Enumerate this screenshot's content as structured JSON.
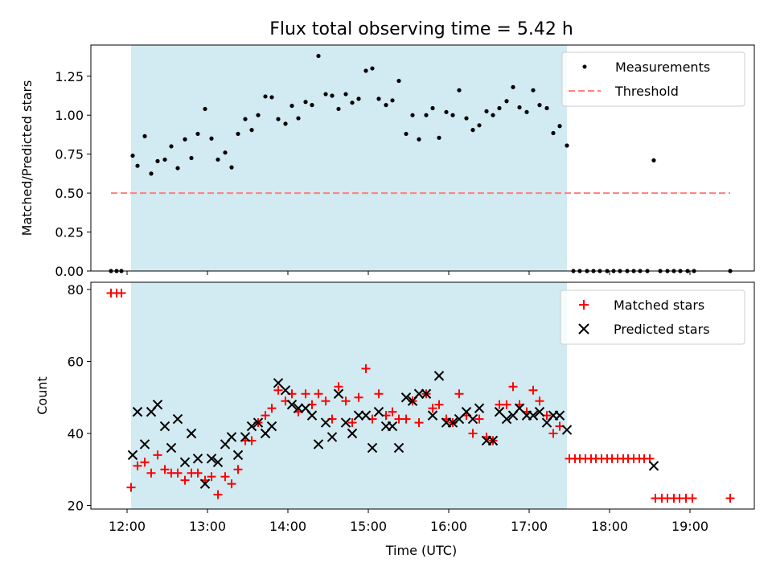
{
  "title": "Flux total observing time = 5.42 h",
  "colors": {
    "span": "#add8e6",
    "measurement": "#000000",
    "threshold": "#ff7f7f",
    "matched": "#ff0000",
    "predicted": "#000000"
  },
  "chart_data": [
    {
      "type": "scatter",
      "panel": "top",
      "ylabel": "Matched/Predicted stars",
      "xlabel": "",
      "xlim": [
        11.55,
        19.8
      ],
      "ylim": [
        0,
        1.45
      ],
      "yticks": [
        0.0,
        0.25,
        0.5,
        0.75,
        1.0,
        1.25
      ],
      "ytick_labels": [
        "0.00",
        "0.25",
        "0.50",
        "0.75",
        "1.00",
        "1.25"
      ],
      "xticks": [
        12,
        13,
        14,
        15,
        16,
        17,
        18,
        19
      ],
      "observing_span": [
        12.05,
        17.47
      ],
      "legend": {
        "placement": "top-right",
        "entries": [
          "Measurements",
          "Threshold"
        ]
      },
      "threshold": {
        "name": "Threshold",
        "y": 0.5,
        "x": [
          11.8,
          19.5
        ]
      },
      "series": [
        {
          "name": "Measurements",
          "points": [
            [
              11.8,
              0
            ],
            [
              11.87,
              0
            ],
            [
              11.93,
              0
            ],
            [
              12.07,
              0.74
            ],
            [
              12.13,
              0.675
            ],
            [
              12.22,
              0.865
            ],
            [
              12.3,
              0.625
            ],
            [
              12.38,
              0.705
            ],
            [
              12.47,
              0.715
            ],
            [
              12.55,
              0.8
            ],
            [
              12.63,
              0.66
            ],
            [
              12.72,
              0.845
            ],
            [
              12.8,
              0.725
            ],
            [
              12.88,
              0.88
            ],
            [
              12.97,
              1.04
            ],
            [
              13.05,
              0.85
            ],
            [
              13.13,
              0.715
            ],
            [
              13.22,
              0.76
            ],
            [
              13.3,
              0.665
            ],
            [
              13.38,
              0.88
            ],
            [
              13.47,
              0.975
            ],
            [
              13.55,
              0.905
            ],
            [
              13.63,
              1.0
            ],
            [
              13.72,
              1.12
            ],
            [
              13.8,
              1.115
            ],
            [
              13.88,
              0.975
            ],
            [
              13.97,
              0.945
            ],
            [
              14.05,
              1.06
            ],
            [
              14.13,
              0.98
            ],
            [
              14.22,
              1.085
            ],
            [
              14.3,
              1.065
            ],
            [
              14.38,
              1.38
            ],
            [
              14.47,
              1.135
            ],
            [
              14.55,
              1.125
            ],
            [
              14.63,
              1.04
            ],
            [
              14.72,
              1.135
            ],
            [
              14.8,
              1.08
            ],
            [
              14.88,
              1.105
            ],
            [
              14.97,
              1.285
            ],
            [
              15.05,
              1.3
            ],
            [
              15.13,
              1.105
            ],
            [
              15.22,
              1.065
            ],
            [
              15.3,
              1.095
            ],
            [
              15.38,
              1.22
            ],
            [
              15.47,
              0.88
            ],
            [
              15.55,
              1.0
            ],
            [
              15.63,
              0.845
            ],
            [
              15.72,
              1.0
            ],
            [
              15.8,
              1.045
            ],
            [
              15.88,
              0.855
            ],
            [
              15.97,
              1.02
            ],
            [
              16.05,
              1.0
            ],
            [
              16.13,
              1.16
            ],
            [
              16.22,
              0.98
            ],
            [
              16.3,
              0.905
            ],
            [
              16.38,
              0.935
            ],
            [
              16.47,
              1.025
            ],
            [
              16.55,
              1.0
            ],
            [
              16.63,
              1.045
            ],
            [
              16.72,
              1.09
            ],
            [
              16.8,
              1.18
            ],
            [
              16.88,
              1.05
            ],
            [
              16.97,
              1.02
            ],
            [
              17.05,
              1.16
            ],
            [
              17.13,
              1.065
            ],
            [
              17.22,
              1.045
            ],
            [
              17.3,
              0.885
            ],
            [
              17.38,
              0.93
            ],
            [
              17.47,
              0.805
            ],
            [
              17.55,
              0
            ],
            [
              17.63,
              0
            ],
            [
              17.72,
              0
            ],
            [
              17.8,
              0
            ],
            [
              17.88,
              0
            ],
            [
              17.97,
              0
            ],
            [
              18.05,
              0
            ],
            [
              18.13,
              0
            ],
            [
              18.22,
              0
            ],
            [
              18.3,
              0
            ],
            [
              18.38,
              0
            ],
            [
              18.47,
              0
            ],
            [
              18.55,
              0.71
            ],
            [
              18.63,
              0
            ],
            [
              18.72,
              0
            ],
            [
              18.8,
              0
            ],
            [
              18.88,
              0
            ],
            [
              18.97,
              0
            ],
            [
              19.05,
              0
            ],
            [
              19.5,
              0
            ]
          ]
        }
      ]
    },
    {
      "type": "scatter",
      "panel": "bottom",
      "ylabel": "Count",
      "xlabel": "Time (UTC)",
      "xlim": [
        11.55,
        19.8
      ],
      "ylim": [
        19,
        82
      ],
      "yticks": [
        20,
        40,
        60,
        80
      ],
      "ytick_labels": [
        "20",
        "40",
        "60",
        "80"
      ],
      "xticks": [
        12,
        13,
        14,
        15,
        16,
        17,
        18,
        19
      ],
      "xtick_labels": [
        "12:00",
        "13:00",
        "14:00",
        "15:00",
        "16:00",
        "17:00",
        "18:00",
        "19:00"
      ],
      "observing_span": [
        12.05,
        17.47
      ],
      "legend": {
        "placement": "top-right",
        "entries": [
          "Matched stars",
          "Predicted stars"
        ]
      },
      "series": [
        {
          "name": "Matched stars",
          "points": [
            [
              11.8,
              79
            ],
            [
              11.87,
              79
            ],
            [
              11.93,
              79
            ],
            [
              12.05,
              25
            ],
            [
              12.13,
              31
            ],
            [
              12.22,
              32
            ],
            [
              12.3,
              29
            ],
            [
              12.38,
              34
            ],
            [
              12.47,
              30
            ],
            [
              12.55,
              29
            ],
            [
              12.63,
              29
            ],
            [
              12.72,
              27
            ],
            [
              12.8,
              29
            ],
            [
              12.88,
              29
            ],
            [
              12.97,
              27
            ],
            [
              13.05,
              28
            ],
            [
              13.13,
              23
            ],
            [
              13.22,
              28
            ],
            [
              13.3,
              26
            ],
            [
              13.38,
              30
            ],
            [
              13.47,
              38
            ],
            [
              13.55,
              38
            ],
            [
              13.63,
              43
            ],
            [
              13.72,
              45
            ],
            [
              13.8,
              47
            ],
            [
              13.88,
              52
            ],
            [
              13.97,
              49
            ],
            [
              14.05,
              51
            ],
            [
              14.13,
              46
            ],
            [
              14.22,
              51
            ],
            [
              14.3,
              48
            ],
            [
              14.38,
              51
            ],
            [
              14.47,
              49
            ],
            [
              14.55,
              44
            ],
            [
              14.63,
              53
            ],
            [
              14.72,
              49
            ],
            [
              14.8,
              43
            ],
            [
              14.88,
              50
            ],
            [
              14.97,
              58
            ],
            [
              15.05,
              44
            ],
            [
              15.13,
              51
            ],
            [
              15.22,
              45
            ],
            [
              15.3,
              46
            ],
            [
              15.38,
              44
            ],
            [
              15.47,
              44
            ],
            [
              15.55,
              49
            ],
            [
              15.63,
              43
            ],
            [
              15.72,
              51
            ],
            [
              15.8,
              47
            ],
            [
              15.88,
              48
            ],
            [
              15.97,
              44
            ],
            [
              16.05,
              43
            ],
            [
              16.13,
              51
            ],
            [
              16.22,
              45
            ],
            [
              16.3,
              40
            ],
            [
              16.38,
              44
            ],
            [
              16.47,
              39
            ],
            [
              16.55,
              38
            ],
            [
              16.63,
              48
            ],
            [
              16.72,
              48
            ],
            [
              16.8,
              53
            ],
            [
              16.88,
              48
            ],
            [
              16.97,
              46
            ],
            [
              17.05,
              52
            ],
            [
              17.13,
              49
            ],
            [
              17.22,
              45
            ],
            [
              17.3,
              40
            ],
            [
              17.38,
              42
            ],
            [
              17.5,
              33
            ],
            [
              17.57,
              33
            ],
            [
              17.63,
              33
            ],
            [
              17.7,
              33
            ],
            [
              17.77,
              33
            ],
            [
              17.83,
              33
            ],
            [
              17.9,
              33
            ],
            [
              17.97,
              33
            ],
            [
              18.03,
              33
            ],
            [
              18.1,
              33
            ],
            [
              18.17,
              33
            ],
            [
              18.23,
              33
            ],
            [
              18.3,
              33
            ],
            [
              18.37,
              33
            ],
            [
              18.43,
              33
            ],
            [
              18.5,
              33
            ],
            [
              18.57,
              22
            ],
            [
              18.65,
              22
            ],
            [
              18.72,
              22
            ],
            [
              18.8,
              22
            ],
            [
              18.87,
              22
            ],
            [
              18.95,
              22
            ],
            [
              19.03,
              22
            ],
            [
              19.5,
              22
            ]
          ]
        },
        {
          "name": "Predicted stars",
          "points": [
            [
              12.07,
              34
            ],
            [
              12.13,
              46
            ],
            [
              12.22,
              37
            ],
            [
              12.3,
              46
            ],
            [
              12.38,
              48
            ],
            [
              12.47,
              42
            ],
            [
              12.55,
              36
            ],
            [
              12.63,
              44
            ],
            [
              12.72,
              32
            ],
            [
              12.8,
              40
            ],
            [
              12.88,
              33
            ],
            [
              12.97,
              26
            ],
            [
              13.05,
              33
            ],
            [
              13.13,
              32
            ],
            [
              13.22,
              37
            ],
            [
              13.3,
              39
            ],
            [
              13.38,
              34
            ],
            [
              13.47,
              39
            ],
            [
              13.55,
              42
            ],
            [
              13.63,
              43
            ],
            [
              13.72,
              40
            ],
            [
              13.8,
              42
            ],
            [
              13.88,
              54
            ],
            [
              13.97,
              52
            ],
            [
              14.05,
              48
            ],
            [
              14.13,
              47
            ],
            [
              14.22,
              47
            ],
            [
              14.3,
              45
            ],
            [
              14.38,
              37
            ],
            [
              14.47,
              43
            ],
            [
              14.55,
              39
            ],
            [
              14.63,
              51
            ],
            [
              14.72,
              43
            ],
            [
              14.8,
              40
            ],
            [
              14.88,
              45
            ],
            [
              14.97,
              45
            ],
            [
              15.05,
              36
            ],
            [
              15.13,
              46
            ],
            [
              15.22,
              42
            ],
            [
              15.3,
              42
            ],
            [
              15.38,
              36
            ],
            [
              15.47,
              50
            ],
            [
              15.55,
              49
            ],
            [
              15.63,
              51
            ],
            [
              15.72,
              51
            ],
            [
              15.8,
              45
            ],
            [
              15.88,
              56
            ],
            [
              15.97,
              43
            ],
            [
              16.05,
              43
            ],
            [
              16.13,
              44
            ],
            [
              16.22,
              46
            ],
            [
              16.3,
              44
            ],
            [
              16.38,
              47
            ],
            [
              16.47,
              38
            ],
            [
              16.55,
              38
            ],
            [
              16.63,
              46
            ],
            [
              16.72,
              44
            ],
            [
              16.8,
              45
            ],
            [
              16.88,
              47
            ],
            [
              16.97,
              45
            ],
            [
              17.05,
              45
            ],
            [
              17.13,
              46
            ],
            [
              17.22,
              43
            ],
            [
              17.3,
              45
            ],
            [
              17.38,
              45
            ],
            [
              17.47,
              41
            ],
            [
              18.55,
              31
            ]
          ]
        }
      ]
    }
  ]
}
